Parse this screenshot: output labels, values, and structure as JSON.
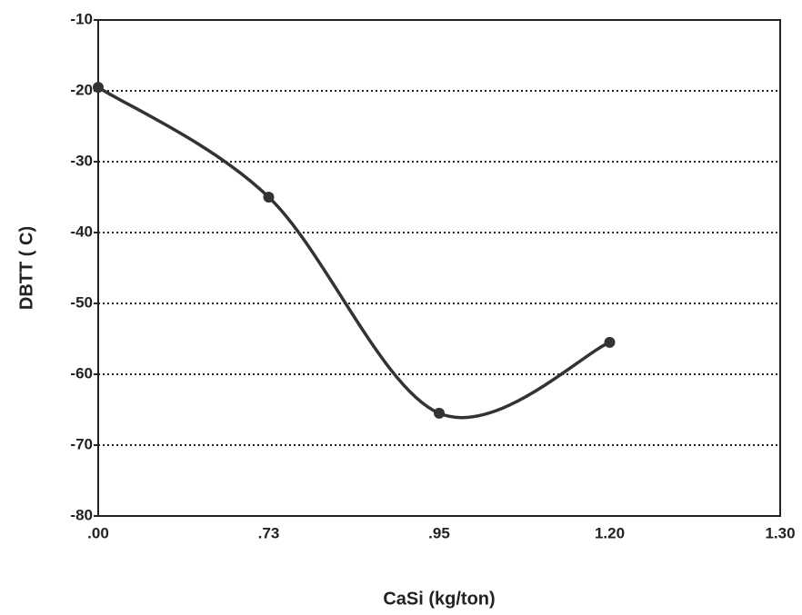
{
  "chart_data": {
    "type": "line",
    "y_label": "DBTT ( C)",
    "x_label": "CaSi (kg/ton)",
    "categories": [
      ".00",
      ".73",
      ".95",
      "1.20",
      "1.30"
    ],
    "values": [
      -19.5,
      -35,
      -65.5,
      -55.5,
      null
    ],
    "color": "#333333",
    "ylim": [
      -80,
      -10
    ],
    "yticks": [
      -80,
      -70,
      -60,
      -50,
      -40,
      -30,
      -20,
      -10
    ],
    "grid": true
  }
}
